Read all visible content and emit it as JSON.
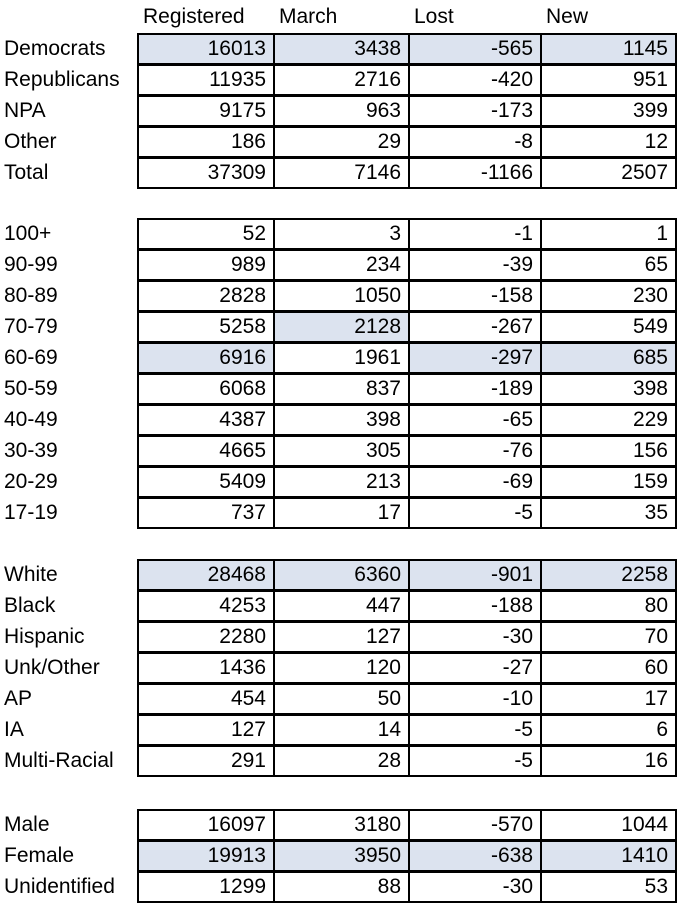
{
  "colors": {
    "highlight": "#dce3ef",
    "border": "#000000",
    "text": "#000000",
    "background": "#ffffff"
  },
  "chart_data": {
    "type": "table",
    "columns": [
      "Registered",
      "March",
      "Lost",
      "New"
    ],
    "sections": [
      {
        "name": "party",
        "rows": [
          {
            "label": "Democrats",
            "values": [
              16013,
              3438,
              -565,
              1145
            ],
            "highlight": [
              true,
              true,
              true,
              true
            ]
          },
          {
            "label": "Republicans",
            "values": [
              11935,
              2716,
              -420,
              951
            ],
            "highlight": [
              false,
              false,
              false,
              false
            ]
          },
          {
            "label": "NPA",
            "values": [
              9175,
              963,
              -173,
              399
            ],
            "highlight": [
              false,
              false,
              false,
              false
            ]
          },
          {
            "label": "Other",
            "values": [
              186,
              29,
              -8,
              12
            ],
            "highlight": [
              false,
              false,
              false,
              false
            ]
          },
          {
            "label": "Total",
            "values": [
              37309,
              7146,
              -1166,
              2507
            ],
            "highlight": [
              false,
              false,
              false,
              false
            ]
          }
        ]
      },
      {
        "name": "age",
        "rows": [
          {
            "label": "100+",
            "values": [
              52,
              3,
              -1,
              1
            ],
            "highlight": [
              false,
              false,
              false,
              false
            ]
          },
          {
            "label": "90-99",
            "values": [
              989,
              234,
              -39,
              65
            ],
            "highlight": [
              false,
              false,
              false,
              false
            ]
          },
          {
            "label": "80-89",
            "values": [
              2828,
              1050,
              -158,
              230
            ],
            "highlight": [
              false,
              false,
              false,
              false
            ]
          },
          {
            "label": "70-79",
            "values": [
              5258,
              2128,
              -267,
              549
            ],
            "highlight": [
              false,
              true,
              false,
              false
            ]
          },
          {
            "label": "60-69",
            "values": [
              6916,
              1961,
              -297,
              685
            ],
            "highlight": [
              true,
              false,
              true,
              true
            ]
          },
          {
            "label": "50-59",
            "values": [
              6068,
              837,
              -189,
              398
            ],
            "highlight": [
              false,
              false,
              false,
              false
            ]
          },
          {
            "label": "40-49",
            "values": [
              4387,
              398,
              -65,
              229
            ],
            "highlight": [
              false,
              false,
              false,
              false
            ]
          },
          {
            "label": "30-39",
            "values": [
              4665,
              305,
              -76,
              156
            ],
            "highlight": [
              false,
              false,
              false,
              false
            ]
          },
          {
            "label": "20-29",
            "values": [
              5409,
              213,
              -69,
              159
            ],
            "highlight": [
              false,
              false,
              false,
              false
            ]
          },
          {
            "label": "17-19",
            "values": [
              737,
              17,
              -5,
              35
            ],
            "highlight": [
              false,
              false,
              false,
              false
            ]
          }
        ]
      },
      {
        "name": "race",
        "rows": [
          {
            "label": "White",
            "values": [
              28468,
              6360,
              -901,
              2258
            ],
            "highlight": [
              true,
              true,
              true,
              true
            ]
          },
          {
            "label": "Black",
            "values": [
              4253,
              447,
              -188,
              80
            ],
            "highlight": [
              false,
              false,
              false,
              false
            ]
          },
          {
            "label": "Hispanic",
            "values": [
              2280,
              127,
              -30,
              70
            ],
            "highlight": [
              false,
              false,
              false,
              false
            ]
          },
          {
            "label": "Unk/Other",
            "values": [
              1436,
              120,
              -27,
              60
            ],
            "highlight": [
              false,
              false,
              false,
              false
            ]
          },
          {
            "label": "AP",
            "values": [
              454,
              50,
              -10,
              17
            ],
            "highlight": [
              false,
              false,
              false,
              false
            ]
          },
          {
            "label": "IA",
            "values": [
              127,
              14,
              -5,
              6
            ],
            "highlight": [
              false,
              false,
              false,
              false
            ]
          },
          {
            "label": "Multi-Racial",
            "values": [
              291,
              28,
              -5,
              16
            ],
            "highlight": [
              false,
              false,
              false,
              false
            ]
          }
        ]
      },
      {
        "name": "gender",
        "rows": [
          {
            "label": "Male",
            "values": [
              16097,
              3180,
              -570,
              1044
            ],
            "highlight": [
              false,
              false,
              false,
              false
            ]
          },
          {
            "label": "Female",
            "values": [
              19913,
              3950,
              -638,
              1410
            ],
            "highlight": [
              true,
              true,
              true,
              true
            ]
          },
          {
            "label": "Unidentified",
            "values": [
              1299,
              88,
              -30,
              53
            ],
            "highlight": [
              false,
              false,
              false,
              false
            ]
          }
        ]
      }
    ]
  }
}
